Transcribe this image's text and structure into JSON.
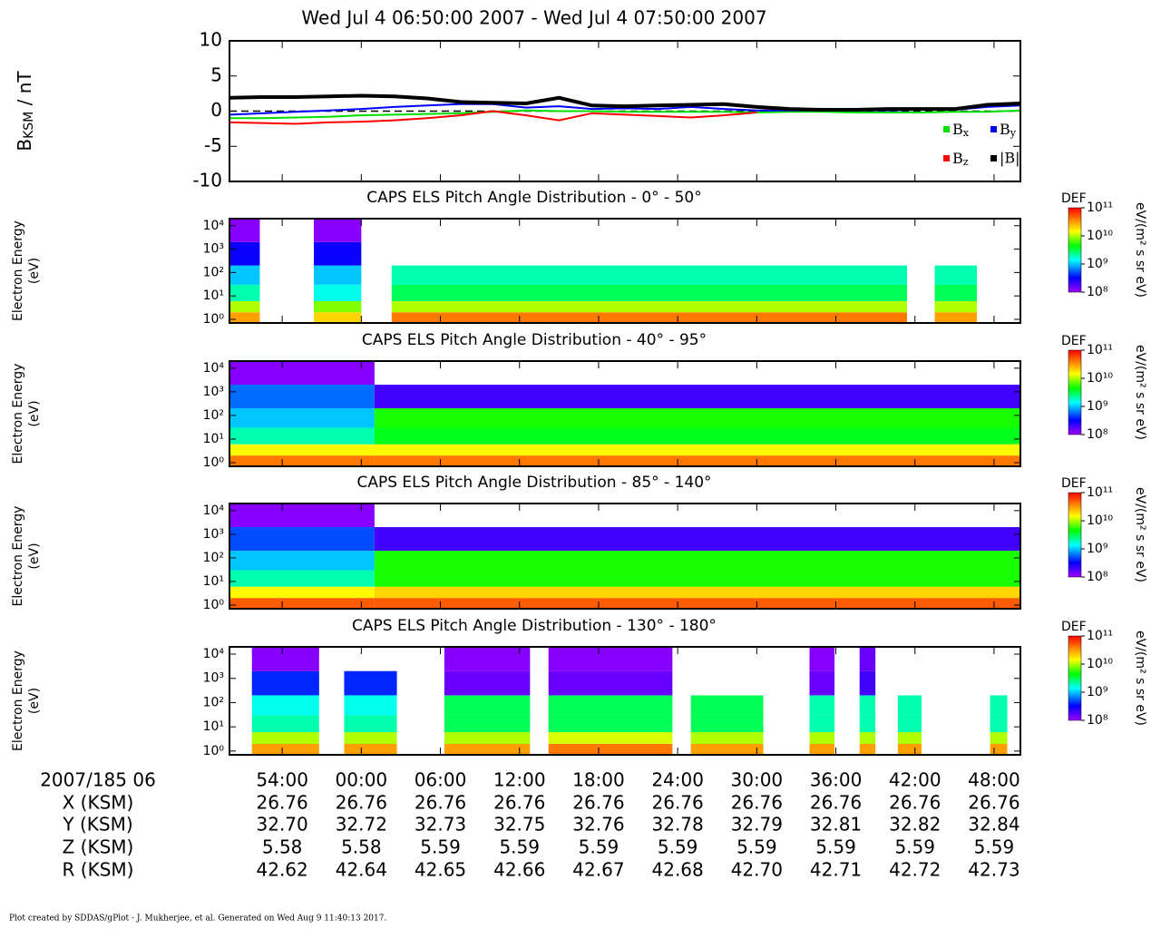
{
  "title": "Wed Jul 4 06:50:00 2007 - Wed Jul 4 07:50:00 2007",
  "footer": "Plot created by SDDAS/gPlot - J. Mukherjee, et al.  Generated on Wed Aug 9 11:40:13 2017.",
  "chart_data": [
    {
      "type": "line",
      "ylabel": "BKSM / nT",
      "x": [
        0,
        2.5,
        5,
        7.5,
        10,
        12.5,
        15,
        17.5,
        20,
        22.5,
        25,
        27.5,
        30,
        32.5,
        35,
        37.5,
        40,
        42.5,
        45,
        47.5,
        50,
        52.5,
        55,
        57.5,
        60
      ],
      "xlim": [
        0,
        60
      ],
      "xticks": [
        4,
        10,
        16,
        22,
        28,
        34,
        40,
        46,
        52,
        58
      ],
      "ylim": [
        -10,
        10
      ],
      "yticks": [
        -10,
        -5,
        0,
        5,
        10
      ],
      "zero_line": true,
      "legend": "lower right",
      "series": [
        {
          "name": "Bx",
          "color": "#00e000",
          "values": [
            -1,
            -1,
            -0.9,
            -0.8,
            -0.6,
            -0.5,
            -0.4,
            -0.3,
            -0.1,
            0.1,
            0,
            0,
            -0.1,
            -0.1,
            -0.1,
            -0.1,
            -0.2,
            -0.1,
            -0.1,
            -0.2,
            -0.2,
            -0.2,
            -0.1,
            -0.1,
            0.1
          ]
        },
        {
          "name": "By",
          "color": "#0000ff",
          "values": [
            -0.5,
            -0.3,
            -0.1,
            0.1,
            0.3,
            0.6,
            0.8,
            1,
            1,
            0.5,
            0.7,
            0.3,
            0.4,
            0.3,
            0.6,
            0.3,
            0.1,
            0.1,
            0.1,
            0.1,
            0.1,
            0.2,
            0.2,
            0.6,
            0.8
          ]
        },
        {
          "name": "Bz",
          "color": "#ff0000",
          "values": [
            -1.6,
            -1.7,
            -1.8,
            -1.6,
            -1.5,
            -1.3,
            -1,
            -0.6,
            0,
            -0.6,
            -1.3,
            -0.3,
            -0.5,
            -0.7,
            -0.9,
            -0.6,
            -0.2,
            null,
            null,
            null,
            null,
            null,
            null,
            null,
            null
          ]
        },
        {
          "name": "|B|",
          "color": "#000000",
          "values": [
            1.9,
            2,
            2,
            2.1,
            2.2,
            2.1,
            1.8,
            1.3,
            1.2,
            1.1,
            1.9,
            0.8,
            0.7,
            0.8,
            0.9,
            1,
            0.6,
            0.3,
            0.2,
            0.2,
            0.3,
            0.3,
            0.3,
            0.9,
            1.1
          ]
        }
      ]
    },
    {
      "type": "spectrogram",
      "title": "CAPS ELS Pitch Angle Distribution - 0° - 50°",
      "ylabel": [
        "Electron Energy",
        "(eV)"
      ],
      "log_y": true,
      "ylim": [
        0.7,
        20000
      ],
      "yticks": [
        {
          "value": 1,
          "label": "10⁰"
        },
        {
          "value": 10,
          "label": "10¹"
        },
        {
          "value": 100,
          "label": "10²"
        },
        {
          "value": 1000,
          "label": "10³"
        },
        {
          "value": 10000,
          "label": "10⁴"
        }
      ],
      "xlim": [
        0,
        60
      ],
      "xticks": [
        4,
        10,
        16,
        22,
        28,
        34,
        40,
        46,
        52,
        58
      ],
      "time_bins": [
        0,
        2.3,
        6.4,
        10,
        12.3,
        51.4,
        53.5,
        56.7,
        60
      ],
      "energy_bins": [
        0.7,
        2,
        6,
        30,
        200,
        2000,
        20000
      ],
      "values": [
        [
          30000000000,
          null,
          20000000000,
          null,
          40000000000,
          null,
          30000000000,
          null
        ],
        [
          10000000000,
          null,
          8000000000,
          null,
          10000000000,
          null,
          10000000000,
          null
        ],
        [
          2000000000,
          null,
          1500000000,
          null,
          3000000000,
          null,
          3000000000,
          null
        ],
        [
          1000000000,
          null,
          1000000000,
          null,
          2000000000,
          null,
          2000000000,
          null
        ],
        [
          300000000,
          null,
          300000000,
          null,
          null,
          null,
          null,
          null
        ],
        [
          120000000,
          null,
          120000000,
          null,
          null,
          null,
          null,
          null
        ]
      ],
      "clabel": "DEF",
      "cunit": "eV/(m² s sr eV)",
      "clim": [
        100000000,
        100000000000
      ],
      "cticks": [
        {
          "value": 100000000,
          "label": "10⁸"
        },
        {
          "value": 1000000000,
          "label": "10⁹"
        },
        {
          "value": 10000000000,
          "label": "10¹⁰"
        },
        {
          "value": 100000000000,
          "label": "10¹¹"
        }
      ]
    },
    {
      "type": "spectrogram",
      "title": "CAPS ELS Pitch Angle Distribution - 40° - 95°",
      "ylabel": [
        "Electron Energy",
        "(eV)"
      ],
      "log_y": true,
      "ylim": [
        0.7,
        20000
      ],
      "yticks": [
        {
          "value": 1,
          "label": "10⁰"
        },
        {
          "value": 10,
          "label": "10¹"
        },
        {
          "value": 100,
          "label": "10²"
        },
        {
          "value": 1000,
          "label": "10³"
        },
        {
          "value": 10000,
          "label": "10⁴"
        }
      ],
      "xlim": [
        0,
        60
      ],
      "xticks": [
        4,
        10,
        16,
        22,
        28,
        34,
        40,
        46,
        52,
        58
      ],
      "time_bins": [
        0,
        11,
        60
      ],
      "energy_bins": [
        0.7,
        2,
        6,
        30,
        200,
        2000,
        20000
      ],
      "values": [
        [
          40000000000,
          40000000000
        ],
        [
          15000000000,
          15000000000
        ],
        [
          2000000000,
          4000000000
        ],
        [
          1000000000,
          5000000000
        ],
        [
          600000000,
          200000000
        ],
        [
          120000000,
          null
        ]
      ],
      "clabel": "DEF",
      "cunit": "eV/(m² s sr eV)",
      "clim": [
        100000000,
        100000000000
      ],
      "cticks": [
        {
          "value": 100000000,
          "label": "10⁸"
        },
        {
          "value": 1000000000,
          "label": "10⁹"
        },
        {
          "value": 10000000000,
          "label": "10¹⁰"
        },
        {
          "value": 100000000000,
          "label": "10¹¹"
        }
      ]
    },
    {
      "type": "spectrogram",
      "title": "CAPS ELS Pitch Angle Distribution - 85° - 140°",
      "ylabel": [
        "Electron Energy",
        "(eV)"
      ],
      "log_y": true,
      "ylim": [
        0.7,
        20000
      ],
      "yticks": [
        {
          "value": 1,
          "label": "10⁰"
        },
        {
          "value": 10,
          "label": "10¹"
        },
        {
          "value": 100,
          "label": "10²"
        },
        {
          "value": 1000,
          "label": "10³"
        },
        {
          "value": 10000,
          "label": "10⁴"
        }
      ],
      "xlim": [
        0,
        60
      ],
      "xticks": [
        4,
        10,
        16,
        22,
        28,
        34,
        40,
        46,
        52,
        58
      ],
      "time_bins": [
        0,
        11,
        60
      ],
      "energy_bins": [
        0.7,
        2,
        6,
        30,
        200,
        2000,
        20000
      ],
      "values": [
        [
          50000000000,
          50000000000
        ],
        [
          15000000000,
          20000000000
        ],
        [
          2000000000,
          5000000000
        ],
        [
          1000000000,
          5000000000
        ],
        [
          500000000,
          200000000
        ],
        [
          120000000,
          null
        ]
      ],
      "clabel": "DEF",
      "cunit": "eV/(m² s sr eV)",
      "clim": [
        100000000,
        100000000000
      ],
      "cticks": [
        {
          "value": 100000000,
          "label": "10⁸"
        },
        {
          "value": 1000000000,
          "label": "10⁹"
        },
        {
          "value": 10000000000,
          "label": "10¹⁰"
        },
        {
          "value": 100000000000,
          "label": "10¹¹"
        }
      ]
    },
    {
      "type": "spectrogram",
      "title": "CAPS ELS Pitch Angle Distribution - 130° - 180°",
      "ylabel": [
        "Electron Energy",
        "(eV)"
      ],
      "log_y": true,
      "ylim": [
        0.7,
        20000
      ],
      "yticks": [
        {
          "value": 1,
          "label": "10⁰"
        },
        {
          "value": 10,
          "label": "10¹"
        },
        {
          "value": 100,
          "label": "10²"
        },
        {
          "value": 1000,
          "label": "10³"
        },
        {
          "value": 10000,
          "label": "10⁴"
        }
      ],
      "xlim": [
        0,
        60
      ],
      "xticks": [
        4,
        10,
        16,
        22,
        28,
        34,
        40,
        46,
        52,
        58
      ],
      "time_bins": [
        0,
        1.7,
        6.8,
        8.7,
        12.7,
        16.3,
        22.8,
        24.2,
        33.6,
        35,
        40.5,
        44,
        45.9,
        47.8,
        49,
        50.7,
        52.5,
        57.7,
        59,
        60
      ],
      "energy_bins": [
        0.7,
        2,
        6,
        30,
        200,
        2000,
        20000
      ],
      "values": [
        [
          null,
          30000000000,
          null,
          30000000000,
          null,
          30000000000,
          null,
          40000000000,
          null,
          30000000000,
          null,
          30000000000,
          null,
          30000000000,
          null,
          30000000000,
          null,
          30000000000,
          null
        ],
        [
          null,
          10000000000,
          null,
          10000000000,
          null,
          10000000000,
          null,
          12000000000,
          null,
          10000000000,
          null,
          10000000000,
          null,
          10000000000,
          null,
          10000000000,
          null,
          10000000000,
          null
        ],
        [
          null,
          2000000000,
          null,
          2000000000,
          null,
          3000000000,
          null,
          3000000000,
          null,
          3000000000,
          null,
          2000000000,
          null,
          2000000000,
          null,
          2000000000,
          null,
          2000000000,
          null
        ],
        [
          null,
          1500000000,
          null,
          1500000000,
          null,
          3000000000,
          null,
          3000000000,
          null,
          3000000000,
          null,
          2000000000,
          null,
          2000000000,
          null,
          2000000000,
          null,
          2000000000,
          null
        ],
        [
          null,
          400000000,
          null,
          400000000,
          null,
          150000000,
          null,
          150000000,
          null,
          null,
          null,
          150000000,
          null,
          200000000,
          null,
          null,
          null,
          null,
          null
        ],
        [
          null,
          120000000,
          null,
          null,
          null,
          120000000,
          null,
          120000000,
          null,
          null,
          null,
          120000000,
          null,
          150000000,
          null,
          null,
          null,
          null,
          null
        ]
      ],
      "clabel": "DEF",
      "cunit": "eV/(m² s sr eV)",
      "clim": [
        100000000,
        100000000000
      ],
      "cticks": [
        {
          "value": 100000000,
          "label": "10⁸"
        },
        {
          "value": 1000000000,
          "label": "10⁹"
        },
        {
          "value": 10000000000,
          "label": "10¹⁰"
        },
        {
          "value": 100000000000,
          "label": "10¹¹"
        }
      ]
    }
  ],
  "time_axis": {
    "xlim": [
      0,
      60
    ],
    "start_label": "2007/185 06",
    "xticks": [
      {
        "value": 4,
        "label": "54:00"
      },
      {
        "value": 10,
        "label": "00:00"
      },
      {
        "value": 16,
        "label": "06:00"
      },
      {
        "value": 22,
        "label": "12:00"
      },
      {
        "value": 28,
        "label": "18:00"
      },
      {
        "value": 34,
        "label": "24:00"
      },
      {
        "value": 40,
        "label": "30:00"
      },
      {
        "value": 46,
        "label": "36:00"
      },
      {
        "value": 52,
        "label": "42:00"
      },
      {
        "value": 58,
        "label": "48:00"
      }
    ],
    "rows": [
      {
        "label": "X (KSM)",
        "values": [
          "26.76",
          "26.76",
          "26.76",
          "26.76",
          "26.76",
          "26.76",
          "26.76",
          "26.76",
          "26.76",
          "26.76"
        ]
      },
      {
        "label": "Y (KSM)",
        "values": [
          "32.70",
          "32.72",
          "32.73",
          "32.75",
          "32.76",
          "32.78",
          "32.79",
          "32.81",
          "32.82",
          "32.84"
        ]
      },
      {
        "label": "Z (KSM)",
        "values": [
          "5.58",
          "5.58",
          "5.59",
          "5.59",
          "5.59",
          "5.59",
          "5.59",
          "5.59",
          "5.59",
          "5.59"
        ]
      },
      {
        "label": "R (KSM)",
        "values": [
          "42.62",
          "42.64",
          "42.65",
          "42.66",
          "42.67",
          "42.68",
          "42.70",
          "42.71",
          "42.72",
          "42.73"
        ]
      }
    ]
  }
}
